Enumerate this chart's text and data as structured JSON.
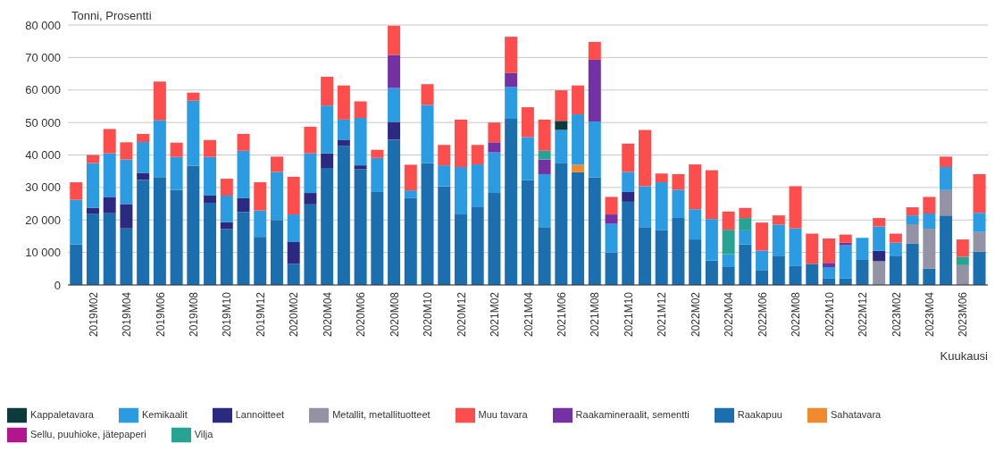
{
  "chart_data": {
    "type": "bar",
    "stacked": true,
    "ylabel": "Tonni, Prosentti",
    "xlabel": "Kuukausi",
    "categories": [
      null,
      "2019M02",
      null,
      "2019M04",
      null,
      "2019M06",
      null,
      "2019M08",
      null,
      "2019M10",
      null,
      "2019M12",
      null,
      "2020M02",
      null,
      "2020M04",
      null,
      "2020M06",
      null,
      "2020M08",
      null,
      "2020M10",
      null,
      "2020M12",
      null,
      "2021M02",
      null,
      "2021M04",
      null,
      "2021M06",
      null,
      "2021M08",
      null,
      "2021M10",
      null,
      "2021M12",
      null,
      "2022M02",
      null,
      "2022M04",
      null,
      "2022M06",
      null,
      "2022M08",
      null,
      "2022M10",
      null,
      "2022M12",
      null,
      "2023M02",
      null,
      "2023M04",
      null,
      "2023M06",
      null
    ],
    "ylim": [
      0,
      80000
    ],
    "yticks": [
      {
        "value": 0,
        "label": "0"
      },
      {
        "value": 10000,
        "label": "10 000"
      },
      {
        "value": 20000,
        "label": "20 000"
      },
      {
        "value": 30000,
        "label": "30 000"
      },
      {
        "value": 40000,
        "label": "40 000"
      },
      {
        "value": 50000,
        "label": "50 000"
      },
      {
        "value": 60000,
        "label": "60 000"
      },
      {
        "value": 70000,
        "label": "70 000"
      },
      {
        "value": 80000,
        "label": "80 000"
      }
    ],
    "grid": "y",
    "legend": "bottom",
    "series": [
      {
        "name": "Raakapuu",
        "color": "#1c6fae",
        "values": [
          12500,
          21900,
          22100,
          17400,
          32400,
          33200,
          29300,
          36700,
          25300,
          17200,
          22500,
          14800,
          20000,
          6500,
          24800,
          36000,
          42800,
          35600,
          28600,
          44700,
          26700,
          37500,
          30400,
          21700,
          24100,
          28300,
          51100,
          32300,
          17800,
          37400,
          34700,
          33100,
          10000,
          25600,
          17800,
          16800,
          20600,
          14000,
          7500,
          5500,
          12500,
          4600,
          8800,
          5800,
          6500,
          2100,
          2100,
          7700,
          null,
          8800,
          12800,
          5000,
          21400,
          null,
          10200
        ]
      },
      {
        "name": "Metallit, metallituotteet",
        "color": "#9493a6",
        "values": [
          null,
          null,
          null,
          null,
          null,
          null,
          null,
          null,
          null,
          null,
          null,
          null,
          null,
          null,
          null,
          null,
          null,
          null,
          null,
          null,
          null,
          null,
          null,
          null,
          null,
          null,
          null,
          null,
          null,
          null,
          null,
          null,
          null,
          null,
          null,
          null,
          null,
          null,
          null,
          null,
          null,
          null,
          null,
          null,
          null,
          null,
          null,
          null,
          7300,
          null,
          5900,
          12300,
          7800,
          6100,
          6100
        ]
      },
      {
        "name": "Sahatavara",
        "color": "#f08a2c",
        "values": [
          null,
          null,
          null,
          null,
          null,
          null,
          null,
          null,
          null,
          null,
          null,
          null,
          null,
          null,
          null,
          null,
          null,
          null,
          null,
          null,
          null,
          null,
          null,
          null,
          null,
          null,
          null,
          null,
          null,
          null,
          2300,
          null,
          null,
          null,
          null,
          null,
          null,
          null,
          null,
          null,
          null,
          null,
          null,
          null,
          null,
          null,
          null,
          null,
          null,
          null,
          null,
          null,
          null,
          null,
          null
        ]
      },
      {
        "name": "Sellu, puuhioke, jätepaperi",
        "color": "#b2168e",
        "values": [
          null,
          null,
          null,
          null,
          null,
          null,
          null,
          null,
          null,
          null,
          null,
          null,
          null,
          null,
          null,
          null,
          null,
          null,
          null,
          null,
          null,
          null,
          null,
          null,
          null,
          null,
          null,
          null,
          null,
          null,
          null,
          null,
          null,
          null,
          null,
          null,
          null,
          null,
          null,
          null,
          null,
          null,
          null,
          null,
          null,
          null,
          null,
          null,
          null,
          null,
          null,
          null,
          null,
          null,
          null
        ]
      },
      {
        "name": "Lannoitteet",
        "color": "#2b2a80",
        "values": [
          null,
          1800,
          5000,
          7500,
          2100,
          null,
          null,
          null,
          2200,
          2100,
          4200,
          null,
          null,
          6700,
          3500,
          4500,
          1900,
          1200,
          null,
          5500,
          null,
          null,
          null,
          null,
          null,
          null,
          null,
          null,
          null,
          null,
          null,
          null,
          null,
          3000,
          null,
          null,
          null,
          null,
          null,
          null,
          null,
          null,
          null,
          null,
          null,
          null,
          null,
          null,
          3200,
          null,
          null,
          null,
          null,
          null,
          null
        ]
      },
      {
        "name": "Kemikaalit",
        "color": "#2b9be2",
        "values": [
          13700,
          13800,
          13400,
          13700,
          9500,
          17500,
          10100,
          20000,
          11900,
          8200,
          14600,
          8100,
          14800,
          8500,
          12200,
          14700,
          6200,
          14600,
          10500,
          10400,
          2400,
          17900,
          6400,
          14600,
          13000,
          12500,
          9900,
          13200,
          16300,
          10300,
          15500,
          17200,
          8800,
          6200,
          12600,
          14800,
          8700,
          9300,
          12800,
          4000,
          4300,
          6000,
          9800,
          11600,
          null,
          3400,
          10100,
          6800,
          7500,
          4200,
          2700,
          4700,
          7100,
          null,
          5900
        ]
      },
      {
        "name": "Raakamineraalit, sementti",
        "color": "#7431a3",
        "values": [
          null,
          null,
          null,
          null,
          null,
          null,
          null,
          null,
          null,
          null,
          null,
          null,
          null,
          null,
          null,
          null,
          null,
          null,
          null,
          10200,
          null,
          null,
          null,
          null,
          null,
          3100,
          4200,
          null,
          4500,
          null,
          null,
          19000,
          2900,
          null,
          null,
          null,
          null,
          null,
          null,
          null,
          null,
          null,
          null,
          null,
          null,
          1300,
          800,
          null,
          null,
          null,
          null,
          null,
          null,
          null,
          null
        ]
      },
      {
        "name": "Vilja",
        "color": "#27a394",
        "values": [
          null,
          null,
          null,
          null,
          null,
          null,
          null,
          null,
          null,
          null,
          null,
          null,
          null,
          null,
          null,
          null,
          null,
          null,
          null,
          null,
          null,
          null,
          null,
          null,
          null,
          null,
          null,
          null,
          2700,
          null,
          null,
          null,
          null,
          null,
          null,
          null,
          null,
          null,
          null,
          7500,
          3800,
          null,
          null,
          null,
          null,
          null,
          null,
          null,
          null,
          null,
          null,
          null,
          null,
          2600,
          null
        ]
      },
      {
        "name": "Kappaletavara",
        "color": "#0d3b3c",
        "values": [
          null,
          null,
          null,
          null,
          null,
          null,
          null,
          null,
          null,
          null,
          null,
          null,
          null,
          null,
          null,
          null,
          null,
          null,
          null,
          null,
          null,
          null,
          null,
          null,
          null,
          null,
          null,
          null,
          null,
          2800,
          null,
          null,
          null,
          null,
          null,
          null,
          null,
          null,
          null,
          null,
          null,
          null,
          null,
          null,
          null,
          null,
          null,
          null,
          null,
          null,
          null,
          null,
          null,
          null,
          null
        ]
      },
      {
        "name": "Muu tavara",
        "color": "#fd4d4d",
        "values": [
          5400,
          2500,
          7500,
          5300,
          2500,
          11900,
          4400,
          2500,
          5200,
          5200,
          5200,
          8700,
          4700,
          11600,
          8200,
          8900,
          10500,
          5100,
          2500,
          9000,
          7900,
          6400,
          6300,
          14600,
          6000,
          6100,
          11200,
          9200,
          9600,
          9400,
          8900,
          5500,
          5400,
          8700,
          17300,
          2700,
          4800,
          13800,
          15000,
          5600,
          3100,
          8600,
          2800,
          13000,
          9300,
          7500,
          2500,
          null,
          2600,
          2800,
          2500,
          5100,
          3200,
          5300,
          11900
        ]
      }
    ]
  }
}
